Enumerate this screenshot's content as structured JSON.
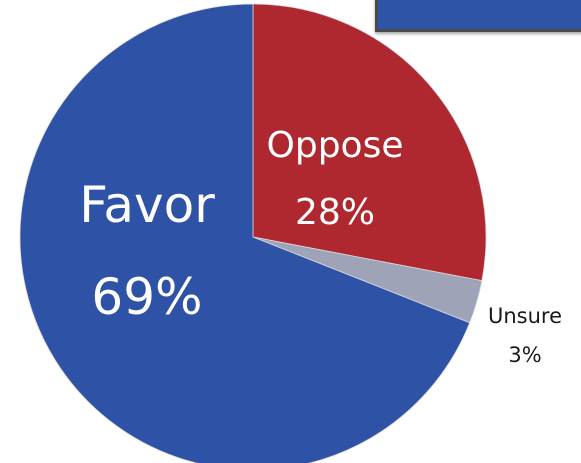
{
  "chart_data": {
    "type": "pie",
    "title": "",
    "slices": [
      {
        "label": "Favor",
        "value": 69,
        "display": "69%",
        "color": "#2e52a6",
        "label_color": "#ffffff",
        "label_place": "inside"
      },
      {
        "label": "Oppose",
        "value": 28,
        "display": "28%",
        "color": "#b0282f",
        "label_color": "#ffffff",
        "label_place": "inside"
      },
      {
        "label": "Unsure",
        "value": 3,
        "display": "3%",
        "color": "#9ea3b8",
        "label_color": "#1a1a1a",
        "label_place": "outside"
      }
    ],
    "legend": "none",
    "start": "12 o'clock",
    "direction": "clockwise",
    "slice_order": [
      "Oppose",
      "Unsure",
      "Favor"
    ]
  }
}
